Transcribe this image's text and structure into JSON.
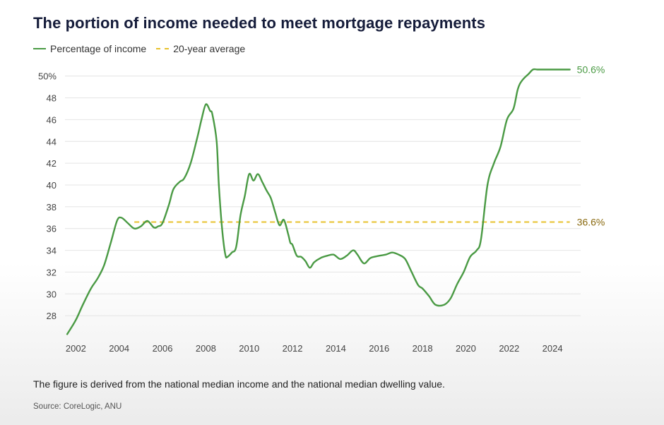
{
  "title": "The portion of income needed to meet mortgage repayments",
  "note": "The figure is derived from the national median income and the national median dwelling value.",
  "source": "Source: CoreLogic, ANU",
  "colors": {
    "series": "#4a9a44",
    "average": "#e7c12a",
    "grid": "#e4e4e4"
  },
  "chart_data": {
    "type": "line",
    "legend": {
      "position": "top-left"
    },
    "grid": true,
    "xlim": [
      2001.5,
      2025.3
    ],
    "ylim": [
      26,
      50.5
    ],
    "x_ticks": [
      "2002",
      "2004",
      "2006",
      "2008",
      "2010",
      "2012",
      "2014",
      "2016",
      "2018",
      "2020",
      "2022",
      "2024"
    ],
    "y_ticks": [
      "50%",
      "48",
      "46",
      "44",
      "42",
      "40",
      "38",
      "36",
      "34",
      "32",
      "30",
      "28"
    ],
    "series": [
      {
        "name": "Percentage of income",
        "end_label": "50.6%",
        "x": [
          2001.6,
          2002.0,
          2002.3,
          2002.7,
          2003.0,
          2003.3,
          2003.6,
          2003.9,
          2004.1,
          2004.4,
          2004.7,
          2005.0,
          2005.3,
          2005.6,
          2005.8,
          2006.0,
          2006.3,
          2006.5,
          2006.8,
          2007.0,
          2007.3,
          2007.6,
          2007.8,
          2008.0,
          2008.2,
          2008.3,
          2008.5,
          2008.6,
          2008.75,
          2008.9,
          2009.0,
          2009.2,
          2009.4,
          2009.6,
          2009.8,
          2010.0,
          2010.2,
          2010.4,
          2010.6,
          2010.8,
          2011.0,
          2011.2,
          2011.4,
          2011.6,
          2011.8,
          2011.9,
          2012.0,
          2012.2,
          2012.4,
          2012.6,
          2012.8,
          2013.0,
          2013.3,
          2013.6,
          2013.9,
          2014.2,
          2014.5,
          2014.8,
          2015.0,
          2015.3,
          2015.6,
          2016.0,
          2016.3,
          2016.6,
          2016.9,
          2017.2,
          2017.5,
          2017.8,
          2018.0,
          2018.3,
          2018.6,
          2019.0,
          2019.3,
          2019.6,
          2019.9,
          2020.2,
          2020.5,
          2020.7,
          2021.0,
          2021.3,
          2021.6,
          2021.9,
          2022.2,
          2022.4,
          2022.6,
          2022.9,
          2023.1,
          2023.3,
          2023.5,
          2023.8,
          2024.0,
          2024.2,
          2024.5,
          2024.8
        ],
        "y": [
          26.3,
          27.6,
          28.9,
          30.5,
          31.4,
          32.6,
          34.6,
          36.7,
          37.0,
          36.5,
          36.0,
          36.2,
          36.7,
          36.1,
          36.2,
          36.5,
          38.2,
          39.6,
          40.3,
          40.6,
          42.0,
          44.3,
          46.0,
          47.4,
          46.8,
          46.5,
          44.0,
          40.0,
          36.0,
          33.6,
          33.4,
          33.8,
          34.3,
          37.2,
          39.0,
          41.0,
          40.4,
          41.0,
          40.3,
          39.5,
          38.8,
          37.5,
          36.3,
          36.8,
          35.5,
          34.7,
          34.5,
          33.5,
          33.4,
          33.0,
          32.4,
          32.9,
          33.3,
          33.5,
          33.6,
          33.2,
          33.5,
          34.0,
          33.6,
          32.8,
          33.3,
          33.5,
          33.6,
          33.8,
          33.6,
          33.2,
          32.0,
          30.8,
          30.5,
          29.8,
          29.0,
          29.0,
          29.6,
          30.9,
          32.0,
          33.4,
          34.0,
          35.0,
          40.0,
          42.0,
          43.5,
          46.0,
          47.0,
          48.8,
          49.6,
          50.2,
          50.6,
          50.6,
          50.6,
          50.6,
          50.6,
          50.6,
          50.6,
          50.6
        ]
      },
      {
        "name": "20-year average",
        "end_label": "36.6%",
        "x": [
          2004.7,
          2024.8
        ],
        "y": [
          36.6,
          36.6
        ]
      }
    ]
  }
}
